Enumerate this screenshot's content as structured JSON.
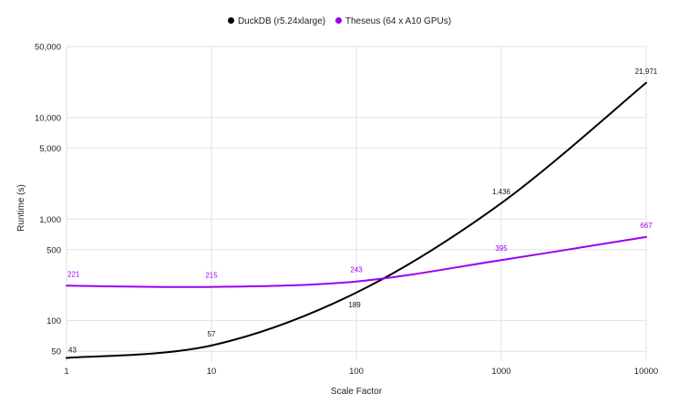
{
  "chart_data": {
    "type": "line",
    "title": "",
    "xlabel": "Scale Factor",
    "ylabel": "Runtime (s)",
    "x_scale": "log",
    "y_scale": "log",
    "xlim": [
      1,
      10000
    ],
    "ylim": [
      40,
      50000
    ],
    "x": [
      1,
      10,
      100,
      1000,
      10000
    ],
    "x_tick_labels": [
      "1",
      "10",
      "100",
      "1000",
      "10000"
    ],
    "y_ticks": [
      50,
      100,
      500,
      1000,
      5000,
      10000,
      50000
    ],
    "y_tick_labels": [
      "50",
      "100",
      "500",
      "1,000",
      "5,000",
      "10,000",
      "50,000"
    ],
    "grid": true,
    "legend_position": "top",
    "series": [
      {
        "name": "DuckDB (r5.24xlarge)",
        "color": "#000000",
        "values": [
          43,
          57,
          189,
          1436,
          21971
        ],
        "labels": [
          "43",
          "57",
          "189",
          "1,436",
          "21,971"
        ]
      },
      {
        "name": "Theseus (64 x A10 GPUs)",
        "color": "#9900ee",
        "values": [
          221,
          215,
          243,
          395,
          667
        ],
        "labels": [
          "221",
          "215",
          "243",
          "395",
          "667"
        ]
      }
    ]
  }
}
